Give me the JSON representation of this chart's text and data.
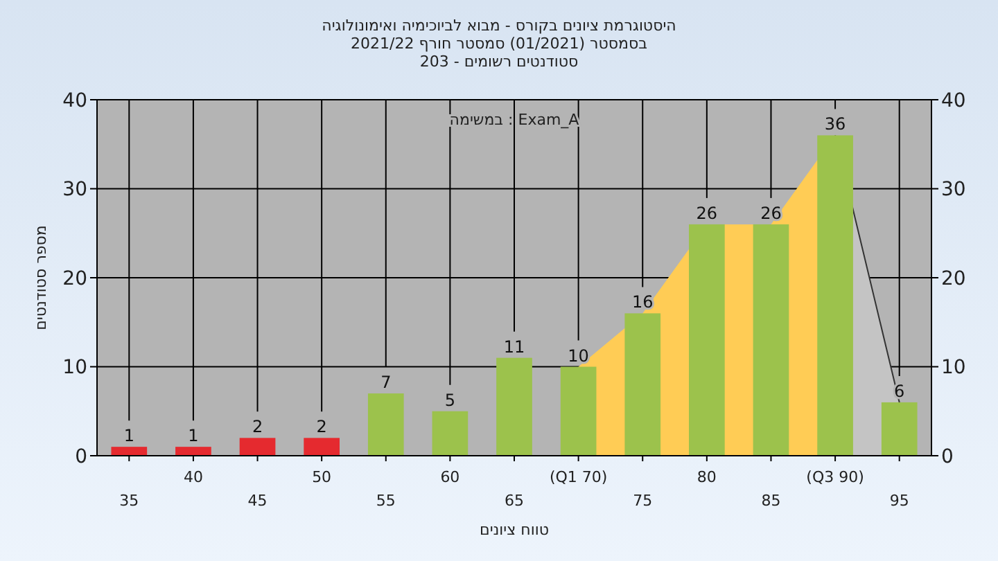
{
  "chart_data": {
    "type": "bar",
    "title": "היסטוגרמת ציונים בקורס - מבוא לביוכימיה ואימונולוגיה",
    "subtitle": "בסמסטר (01/2021) סמסטר חורף 2021/22\nסטודנטים רשומים - 203",
    "xlabel": "טווח ציונים",
    "ylabel": "מספר סטודנטים",
    "annotations": [
      "במשימה : Exam_A"
    ],
    "categories": [
      "35",
      "40",
      "45",
      "50",
      "55",
      "60",
      "65",
      "(Q1 70)",
      "75",
      "80",
      "85",
      "(Q3 90)",
      "95"
    ],
    "series": [
      {
        "type": "area",
        "color": "#c4c4c4",
        "values": [
          null,
          null,
          null,
          null,
          null,
          null,
          null,
          null,
          null,
          null,
          null,
          36,
          6
        ]
      },
      {
        "type": "area",
        "color": "#ffcc55",
        "values": [
          null,
          null,
          null,
          null,
          null,
          null,
          null,
          10,
          16,
          26,
          26,
          36,
          null
        ]
      },
      {
        "values": [
          1,
          1,
          2,
          2,
          7,
          5,
          11,
          10,
          16,
          26,
          26,
          36,
          6
        ],
        "value_labels": [
          "1",
          "1",
          "2",
          "2",
          "7",
          "5",
          "11",
          "10",
          "16",
          "26",
          "26",
          "36",
          "6"
        ],
        "colors": [
          "#e52a2f",
          "#e52a2f",
          "#e52a2f",
          "#e52a2f",
          "#9cc24c",
          "#9cc24c",
          "#9cc24c",
          "#9cc24c",
          "#9cc24c",
          "#9cc24c",
          "#9cc24c",
          "#9cc24c",
          "#9cc24c"
        ]
      }
    ],
    "ylim": [
      0,
      40
    ],
    "yticks": [
      0,
      10,
      20,
      30,
      40
    ],
    "y2lim": [
      0,
      40
    ],
    "y2ticks": [
      0,
      10,
      20,
      30,
      40
    ],
    "grid": true
  }
}
